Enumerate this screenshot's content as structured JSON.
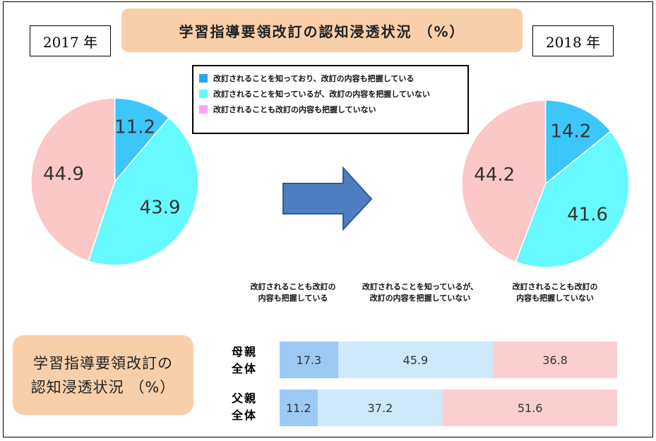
{
  "header": {
    "title": "学習指導要領改訂の認知浸透状況 （%）",
    "year_left": "2017 年",
    "year_right": "2018 年"
  },
  "legend": [
    {
      "label": "改訂されることを知っており、改訂の内容も把握している",
      "color": "#2aa5ef"
    },
    {
      "label": "改訂されることを知っているが、改訂の内容を把握していない",
      "color": "#60fafa"
    },
    {
      "label": "改訂されることも改訂の内容も把握していない",
      "color": "#f9a8ef"
    }
  ],
  "bottom": {
    "title_line1": "学習指導要領改訂の",
    "title_line2": "認知浸透状況 （%）",
    "col_headers": [
      {
        "line1": "改訂されることも改訂の",
        "line2": "内容も把握している"
      },
      {
        "line1": "改訂されることを知っているが、",
        "line2": "改訂の内容を把握していない"
      },
      {
        "line1": "改訂されることも改訂の",
        "line2": "内容も把握していない"
      }
    ],
    "rows": [
      {
        "line1": "母親",
        "line2": "全体"
      },
      {
        "line1": "父親",
        "line2": "全体"
      }
    ]
  },
  "chart_data": [
    {
      "type": "pie",
      "title": "2017 年",
      "labels": [
        "改訂されることを知っており、改訂の内容も把握している",
        "改訂されることを知っているが、改訂の内容を把握していない",
        "改訂されることも改訂の内容も把握していない"
      ],
      "values": [
        11.2,
        43.9,
        44.9
      ],
      "colors": [
        "#3cc6fb",
        "#66f9fd",
        "#fbc7c7"
      ]
    },
    {
      "type": "pie",
      "title": "2018 年",
      "labels": [
        "改訂されることを知っており、改訂の内容も把握している",
        "改訂されることを知っているが、改訂の内容を把握していない",
        "改訂されることも改訂の内容も把握していない"
      ],
      "values": [
        14.2,
        41.6,
        44.2
      ],
      "colors": [
        "#3cc6fb",
        "#66f9fd",
        "#fbc7c7"
      ]
    },
    {
      "type": "bar",
      "orientation": "horizontal-stacked",
      "categories": [
        "母親全体",
        "父親全体"
      ],
      "series": [
        {
          "name": "改訂されることも改訂の内容も把握している",
          "values": [
            17.3,
            11.2
          ],
          "color": "#9ccaf4"
        },
        {
          "name": "改訂されることを知っているが、改訂の内容を把握していない",
          "values": [
            45.9,
            37.2
          ],
          "color": "#cfe9fb"
        },
        {
          "name": "改訂されることも改訂の内容も把握していない",
          "values": [
            36.8,
            51.6
          ],
          "color": "#fbcfd0"
        }
      ]
    }
  ]
}
